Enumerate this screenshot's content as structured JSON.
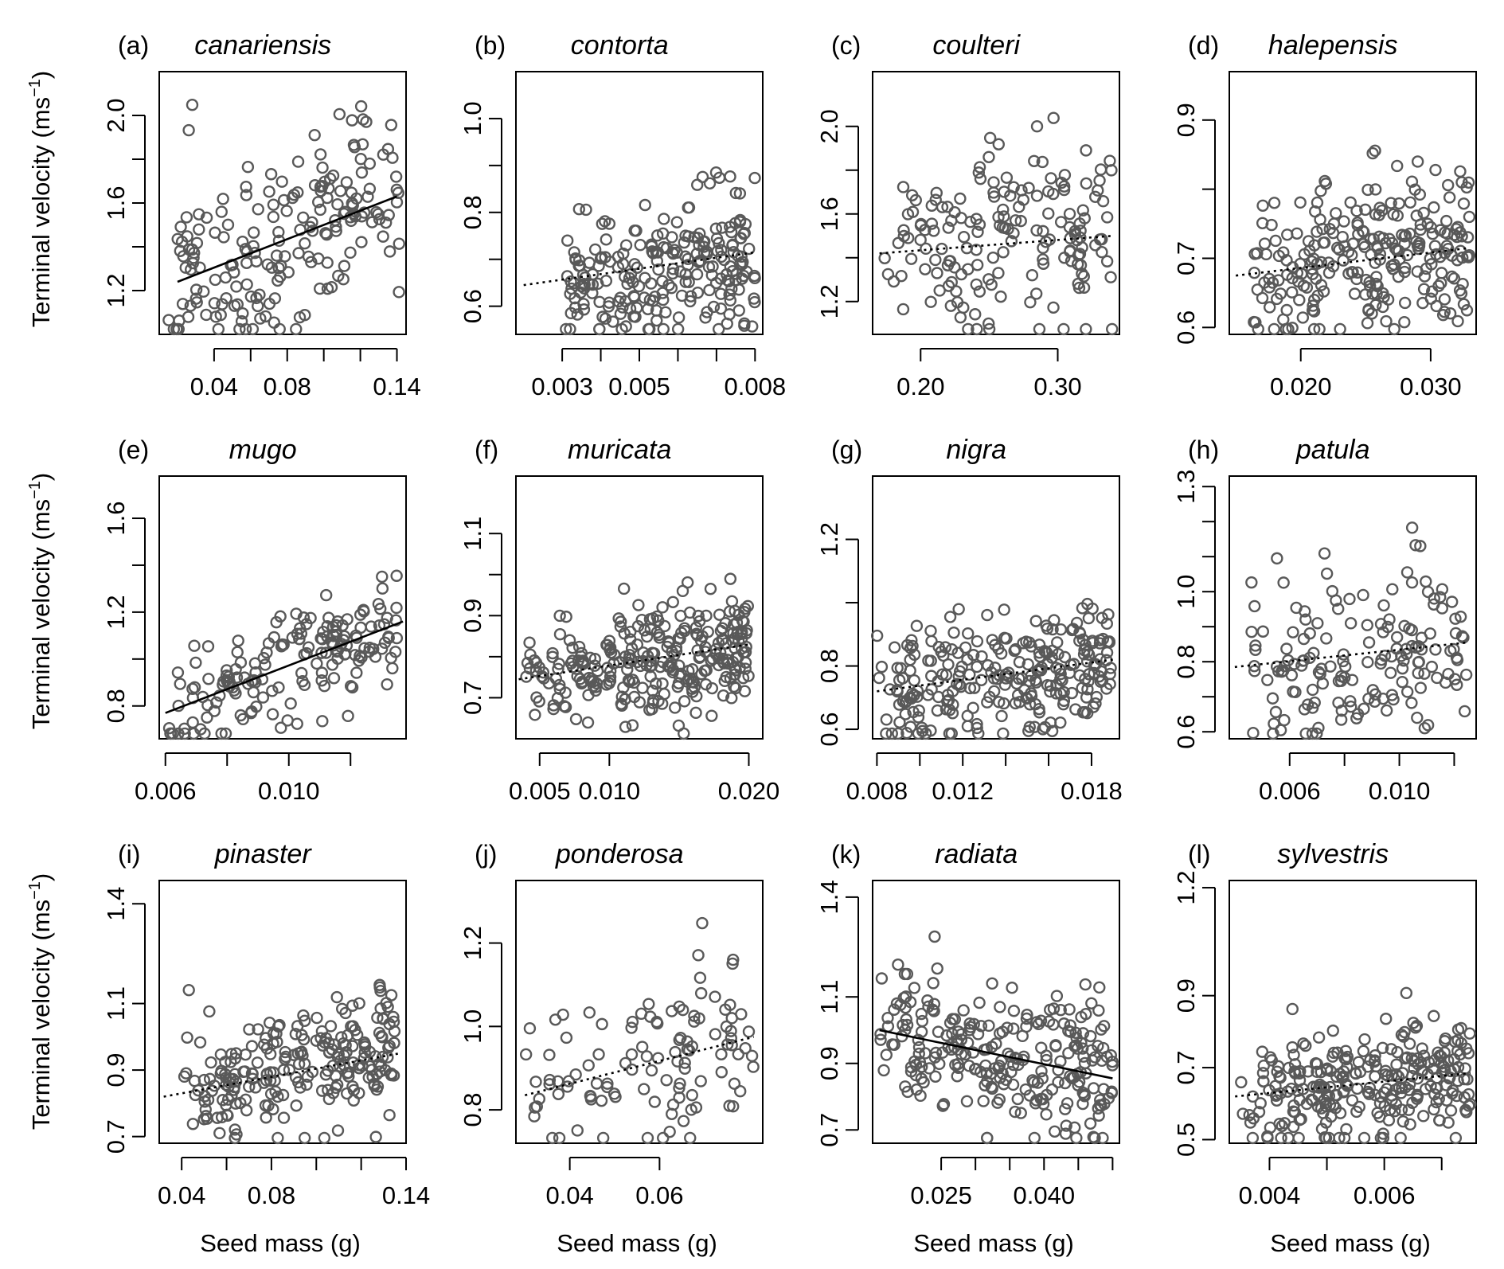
{
  "figure": {
    "xlabel": "Seed mass (g)",
    "ylabel": "Terminal velocity (ms",
    "ylabel_sup": "−1",
    "ylabel_end": ")"
  },
  "chart_data": [
    {
      "tag": "(a)",
      "title": "canariensis",
      "type": "scatter",
      "xlim": [
        0.01,
        0.145
      ],
      "ylim": [
        1.0,
        2.2
      ],
      "xticks": [
        0.04,
        0.06,
        0.08,
        0.1,
        0.12,
        0.14
      ],
      "xtick_labels": [
        "0.04",
        "",
        "0.08",
        "",
        "",
        "0.14"
      ],
      "yticks": [
        1.2,
        1.4,
        1.6,
        1.8,
        2.0
      ],
      "ytick_labels": [
        "1.2",
        "",
        "1.6",
        "",
        "2.0"
      ],
      "fit": {
        "style": "solid",
        "x": [
          0.02,
          0.14
        ],
        "y": [
          1.24,
          1.63
        ]
      },
      "points": {
        "n": 190,
        "x_range": [
          0.015,
          0.142
        ],
        "y_mean": 1.45,
        "y_sd": 0.22,
        "seed": 11
      }
    },
    {
      "tag": "(b)",
      "title": "contorta",
      "type": "scatter",
      "xlim": [
        0.0018,
        0.0082
      ],
      "ylim": [
        0.54,
        1.1
      ],
      "xticks": [
        0.003,
        0.004,
        0.005,
        0.006,
        0.007,
        0.008
      ],
      "xtick_labels": [
        "0.003",
        "",
        "0.005",
        "",
        "",
        "0.008"
      ],
      "yticks": [
        0.6,
        0.7,
        0.8,
        0.9,
        1.0
      ],
      "ytick_labels": [
        "0.6",
        "",
        "0.8",
        "",
        "1.0"
      ],
      "fit": {
        "style": "dotted",
        "x": [
          0.002,
          0.008
        ],
        "y": [
          0.645,
          0.715
        ]
      },
      "points": {
        "n": 230,
        "x_range": [
          0.003,
          0.008
        ],
        "y_mean": 0.68,
        "y_sd": 0.07,
        "seed": 23
      }
    },
    {
      "tag": "(c)",
      "title": "coulteri",
      "type": "scatter",
      "xlim": [
        0.165,
        0.345
      ],
      "ylim": [
        1.05,
        2.25
      ],
      "xticks": [
        0.2,
        0.3
      ],
      "xtick_labels": [
        "0.20",
        "0.30"
      ],
      "yticks": [
        1.2,
        1.4,
        1.6,
        1.8,
        2.0
      ],
      "ytick_labels": [
        "1.2",
        "",
        "1.6",
        "",
        "2.0"
      ],
      "fit": {
        "style": "dotted",
        "x": [
          0.17,
          0.34
        ],
        "y": [
          1.42,
          1.5
        ]
      },
      "points": {
        "n": 170,
        "x_range": [
          0.17,
          0.34
        ],
        "y_mean": 1.46,
        "y_sd": 0.23,
        "seed": 37
      }
    },
    {
      "tag": "(d)",
      "title": "halepensis",
      "type": "scatter",
      "xlim": [
        0.0145,
        0.0335
      ],
      "ylim": [
        0.59,
        0.97
      ],
      "xticks": [
        0.02,
        0.03
      ],
      "xtick_labels": [
        "0.020",
        "0.030"
      ],
      "yticks": [
        0.6,
        0.7,
        0.8,
        0.9
      ],
      "ytick_labels": [
        "0.6",
        "0.7",
        "",
        "0.9"
      ],
      "fit": {
        "style": "dotted",
        "x": [
          0.015,
          0.033
        ],
        "y": [
          0.675,
          0.715
        ]
      },
      "points": {
        "n": 250,
        "x_range": [
          0.016,
          0.033
        ],
        "y_mean": 0.69,
        "y_sd": 0.06,
        "seed": 41
      }
    },
    {
      "tag": "(e)",
      "title": "mugo",
      "type": "scatter",
      "xlim": [
        0.0058,
        0.0138
      ],
      "ylim": [
        0.66,
        1.78
      ],
      "xticks": [
        0.006,
        0.008,
        0.01,
        0.012
      ],
      "xtick_labels": [
        "0.006",
        "",
        "0.010",
        ""
      ],
      "yticks": [
        0.8,
        1.0,
        1.2,
        1.4,
        1.6
      ],
      "ytick_labels": [
        "0.8",
        "",
        "1.2",
        "",
        "1.6"
      ],
      "fit": {
        "style": "solid",
        "x": [
          0.006,
          0.0137
        ],
        "y": [
          0.77,
          1.16
        ]
      },
      "points": {
        "n": 170,
        "x_range": [
          0.006,
          0.0135
        ],
        "y_mean": 0.93,
        "y_sd": 0.11,
        "seed": 53
      }
    },
    {
      "tag": "(f)",
      "title": "muricata",
      "type": "scatter",
      "xlim": [
        0.0033,
        0.021
      ],
      "ylim": [
        0.6,
        1.24
      ],
      "xticks": [
        0.005,
        0.01,
        0.02
      ],
      "xtick_labels": [
        "0.005",
        "0.010",
        "0.020"
      ],
      "yticks": [
        0.7,
        0.8,
        0.9,
        1.0,
        1.1
      ],
      "ytick_labels": [
        "0.7",
        "",
        "0.9",
        "",
        "1.1"
      ],
      "fit": {
        "style": "dotted",
        "x": [
          0.0035,
          0.02
        ],
        "y": [
          0.745,
          0.83
        ]
      },
      "points": {
        "n": 280,
        "x_range": [
          0.004,
          0.02
        ],
        "y_mean": 0.8,
        "y_sd": 0.07,
        "seed": 61
      }
    },
    {
      "tag": "(g)",
      "title": "nigra",
      "type": "scatter",
      "xlim": [
        0.0078,
        0.0193
      ],
      "ylim": [
        0.57,
        1.4
      ],
      "xticks": [
        0.008,
        0.01,
        0.012,
        0.014,
        0.016,
        0.018
      ],
      "xtick_labels": [
        "0.008",
        "",
        "0.012",
        "",
        "",
        "0.018"
      ],
      "yticks": [
        0.6,
        0.8,
        1.0,
        1.2
      ],
      "ytick_labels": [
        "0.6",
        "0.8",
        "",
        "1.2"
      ],
      "fit": {
        "style": "dotted",
        "x": [
          0.008,
          0.019
        ],
        "y": [
          0.72,
          0.82
        ]
      },
      "points": {
        "n": 260,
        "x_range": [
          0.008,
          0.019
        ],
        "y_mean": 0.79,
        "y_sd": 0.1,
        "seed": 71
      }
    },
    {
      "tag": "(h)",
      "title": "patula",
      "type": "scatter",
      "xlim": [
        0.0038,
        0.0128
      ],
      "ylim": [
        0.58,
        1.33
      ],
      "xticks": [
        0.006,
        0.008,
        0.01,
        0.012
      ],
      "xtick_labels": [
        "0.006",
        "",
        "0.010",
        ""
      ],
      "yticks": [
        0.6,
        0.7,
        0.8,
        0.9,
        1.0,
        1.1,
        1.2,
        1.3
      ],
      "ytick_labels": [
        "0.6",
        "",
        "0.8",
        "",
        "1.0",
        "",
        "",
        "1.3"
      ],
      "fit": {
        "style": "dotted",
        "x": [
          0.004,
          0.0125
        ],
        "y": [
          0.785,
          0.855
        ]
      },
      "points": {
        "n": 160,
        "x_range": [
          0.0045,
          0.0125
        ],
        "y_mean": 0.82,
        "y_sd": 0.12,
        "seed": 83
      }
    },
    {
      "tag": "(i)",
      "title": "pinaster",
      "type": "scatter",
      "xlim": [
        0.03,
        0.14
      ],
      "ylim": [
        0.68,
        1.47
      ],
      "xticks": [
        0.04,
        0.06,
        0.08,
        0.1,
        0.12,
        0.14
      ],
      "xtick_labels": [
        "0.04",
        "",
        "0.08",
        "",
        "",
        "0.14"
      ],
      "yticks": [
        0.7,
        0.9,
        1.1,
        1.4
      ],
      "ytick_labels": [
        "0.7",
        "0.9",
        "1.1",
        "1.4"
      ],
      "fit": {
        "style": "dotted",
        "x": [
          0.032,
          0.137
        ],
        "y": [
          0.82,
          0.95
        ]
      },
      "points": {
        "n": 230,
        "x_range": [
          0.04,
          0.135
        ],
        "y_mean": 0.87,
        "y_sd": 0.1,
        "seed": 97
      }
    },
    {
      "tag": "(j)",
      "title": "ponderosa",
      "type": "scatter",
      "xlim": [
        0.028,
        0.083
      ],
      "ylim": [
        0.72,
        1.35
      ],
      "xticks": [
        0.04,
        0.06
      ],
      "xtick_labels": [
        "0.04",
        "0.06"
      ],
      "yticks": [
        0.8,
        1.0,
        1.2
      ],
      "ytick_labels": [
        "0.8",
        "1.0",
        "1.2"
      ],
      "fit": {
        "style": "dotted",
        "x": [
          0.03,
          0.081
        ],
        "y": [
          0.835,
          0.975
        ]
      },
      "points": {
        "n": 110,
        "x_range": [
          0.03,
          0.081
        ],
        "y_mean": 0.9,
        "y_sd": 0.11,
        "seed": 103
      }
    },
    {
      "tag": "(k)",
      "title": "radiata",
      "type": "scatter",
      "xlim": [
        0.015,
        0.051
      ],
      "ylim": [
        0.66,
        1.45
      ],
      "xticks": [
        0.025,
        0.03,
        0.035,
        0.04,
        0.045,
        0.05
      ],
      "xtick_labels": [
        "0.025",
        "",
        "",
        "0.040",
        "",
        ""
      ],
      "yticks": [
        0.7,
        0.9,
        1.1,
        1.4
      ],
      "ytick_labels": [
        "0.7",
        "0.9",
        "1.1",
        "1.4"
      ],
      "fit": {
        "style": "solid",
        "x": [
          0.016,
          0.05
        ],
        "y": [
          1.0,
          0.855
        ]
      },
      "points": {
        "n": 250,
        "x_range": [
          0.016,
          0.05
        ],
        "y_mean": 0.93,
        "y_sd": 0.11,
        "seed": 113
      }
    },
    {
      "tag": "(l)",
      "title": "sylvestris",
      "type": "scatter",
      "xlim": [
        0.0033,
        0.0076
      ],
      "ylim": [
        0.49,
        1.22
      ],
      "xticks": [
        0.004,
        0.005,
        0.006,
        0.007
      ],
      "xtick_labels": [
        "0.004",
        "",
        "0.006",
        ""
      ],
      "yticks": [
        0.5,
        0.7,
        0.9,
        1.2
      ],
      "ytick_labels": [
        "0.5",
        "0.7",
        "0.9",
        "1.2"
      ],
      "fit": {
        "style": "dotted",
        "x": [
          0.0034,
          0.0075
        ],
        "y": [
          0.62,
          0.685
        ]
      },
      "points": {
        "n": 270,
        "x_range": [
          0.0035,
          0.0075
        ],
        "y_mean": 0.65,
        "y_sd": 0.08,
        "seed": 127
      }
    }
  ]
}
